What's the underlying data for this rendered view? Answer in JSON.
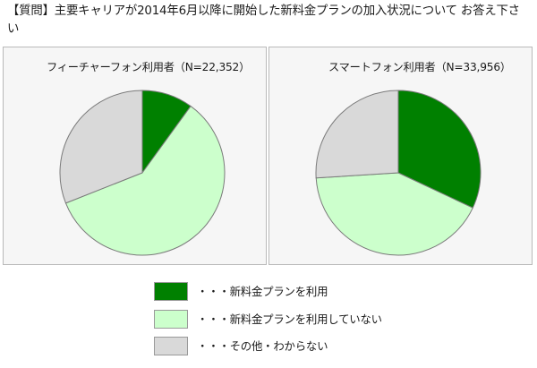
{
  "question": "【質問】主要キャリアが2014年6月以降に開始した新料金プランの加入状況について お答え下さい",
  "colors": {
    "use_new_plan": "#008000",
    "not_using": "#ccffcc",
    "other": "#d9d9d9",
    "stroke": "#7a7a7a"
  },
  "legend": [
    {
      "label": "・・・新料金プランを利用",
      "color_key": "use_new_plan"
    },
    {
      "label": "・・・新料金プランを利用していない",
      "color_key": "not_using"
    },
    {
      "label": "・・・その他・わからない",
      "color_key": "other"
    }
  ],
  "chart_data": [
    {
      "type": "pie",
      "title": "フィーチャーフォン利用者（N=22,352）",
      "categories": [
        "新料金プランを利用",
        "新料金プランを利用していない",
        "その他・わからない"
      ],
      "values": [
        10,
        59,
        31
      ],
      "legend_placement": "bottom"
    },
    {
      "type": "pie",
      "title": "スマートフォン利用者（N=33,956）",
      "categories": [
        "新料金プランを利用",
        "新料金プランを利用していない",
        "その他・わからない"
      ],
      "values": [
        32,
        42,
        26
      ],
      "legend_placement": "bottom"
    }
  ]
}
